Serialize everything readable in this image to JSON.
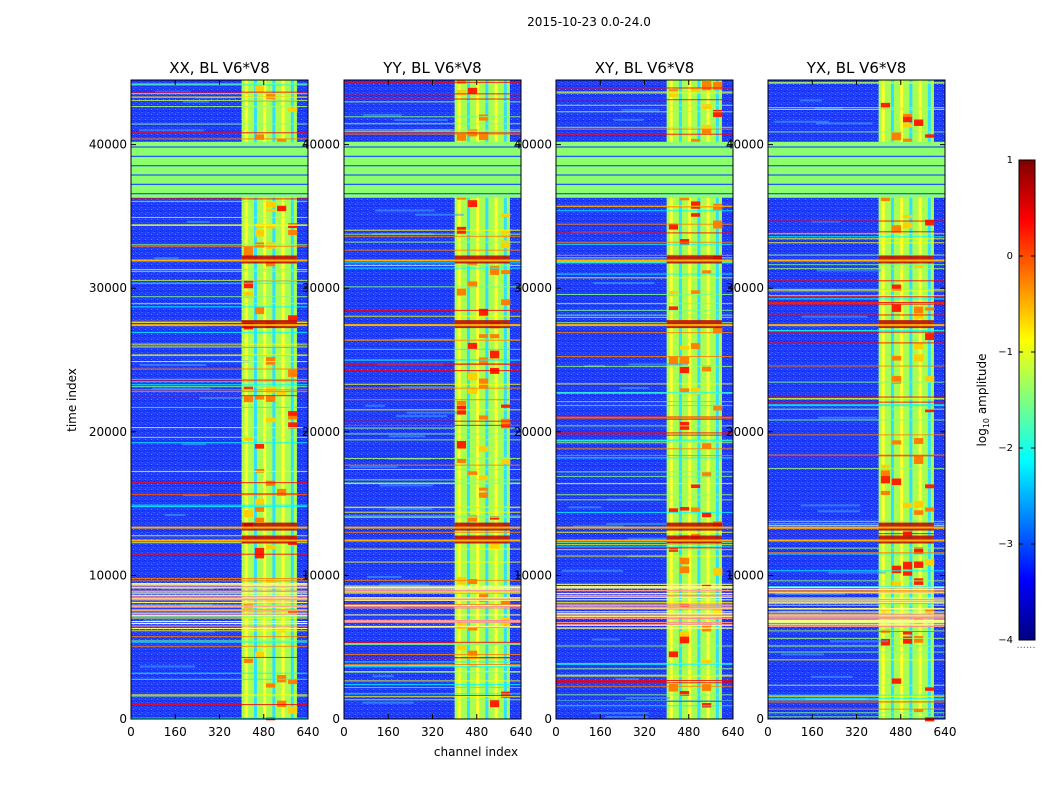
{
  "chart_data": {
    "type": "heatmap",
    "suptitle": "2015-10-23 0.0-24.0",
    "xlabel": "channel index",
    "ylabel": "time index",
    "x_ticks": [
      "0",
      "160",
      "320",
      "480",
      "640"
    ],
    "y_ticks": [
      "0",
      "10000",
      "20000",
      "30000",
      "40000"
    ],
    "x_range": [
      0,
      640
    ],
    "y_range": [
      0,
      44500
    ],
    "panels": [
      {
        "title": "XX, BL V6*V8"
      },
      {
        "title": "YY, BL V6*V8"
      },
      {
        "title": "XY, BL V6*V8"
      },
      {
        "title": "YX, BL V6*V8"
      }
    ],
    "colorbar": {
      "label": "log",
      "label_sub": "10",
      "label_rest": " amplitude",
      "range": [
        -4,
        1
      ],
      "ticks": [
        "1",
        "0",
        "−1",
        "−2",
        "−3",
        "−4"
      ],
      "ellipsis": "......"
    },
    "features": {
      "bright_channel_band": [
        400,
        600
      ],
      "saturated_rows": [
        [
          36300,
          40200
        ]
      ],
      "strong_rfi_rows": [
        12500,
        13400,
        27500,
        32000
      ]
    }
  }
}
